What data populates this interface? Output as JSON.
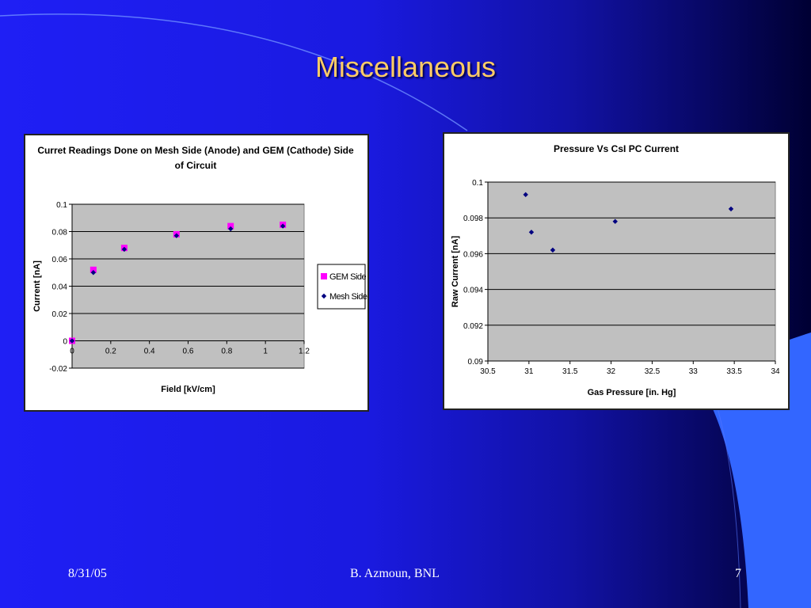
{
  "slide": {
    "title": "Miscellaneous",
    "footer": {
      "date": "8/31/05",
      "author": "B. Azmoun, BNL",
      "page": "7"
    },
    "colors": {
      "title": "#ffcc66",
      "accent": "#3366ff",
      "background": "#1f1ff5"
    }
  },
  "chart_data": [
    {
      "type": "scatter",
      "title_lines": [
        "Curret Readings Done on Mesh Side (Anode) and GEM (Cathode) Side",
        "of Circuit"
      ],
      "xlabel": "Field [kV/cm]",
      "ylabel": "Current [nA]",
      "xlim": [
        0,
        1.2
      ],
      "ylim": [
        -0.02,
        0.1
      ],
      "xticks": [
        "0",
        "0.2",
        "0.4",
        "0.6",
        "0.8",
        "1",
        "1.2"
      ],
      "yticks": [
        "-0.02",
        "0",
        "0.02",
        "0.04",
        "0.06",
        "0.08",
        "0.1"
      ],
      "grid": true,
      "legend_position": "right",
      "series": [
        {
          "name": "GEM Side",
          "marker": "square",
          "color": "#ff00ff",
          "x": [
            0,
            0.11,
            0.27,
            0.54,
            0.82,
            1.09
          ],
          "y": [
            0,
            0.052,
            0.068,
            0.078,
            0.084,
            0.085
          ]
        },
        {
          "name": "Mesh Side",
          "marker": "diamond",
          "color": "#000080",
          "x": [
            0,
            0.11,
            0.27,
            0.54,
            0.82,
            1.09
          ],
          "y": [
            0,
            0.05,
            0.067,
            0.077,
            0.082,
            0.084
          ]
        }
      ]
    },
    {
      "type": "scatter",
      "title_lines": [
        "Pressure Vs CsI PC Current"
      ],
      "xlabel": "Gas Pressure [in. Hg]",
      "ylabel": "Raw Current [nA]",
      "xlim": [
        30.5,
        34
      ],
      "ylim": [
        0.09,
        0.1
      ],
      "xticks": [
        "30.5",
        "31",
        "31.5",
        "32",
        "32.5",
        "33",
        "33.5",
        "34"
      ],
      "yticks": [
        "0.09",
        "0.092",
        "0.094",
        "0.096",
        "0.098",
        "0.1"
      ],
      "grid": true,
      "legend_position": "none",
      "series": [
        {
          "marker": "diamond",
          "color": "#000080",
          "x": [
            30.96,
            31.03,
            31.29,
            32.05,
            33.46
          ],
          "y": [
            0.0993,
            0.0972,
            0.0962,
            0.0978,
            0.0985
          ]
        }
      ]
    }
  ]
}
